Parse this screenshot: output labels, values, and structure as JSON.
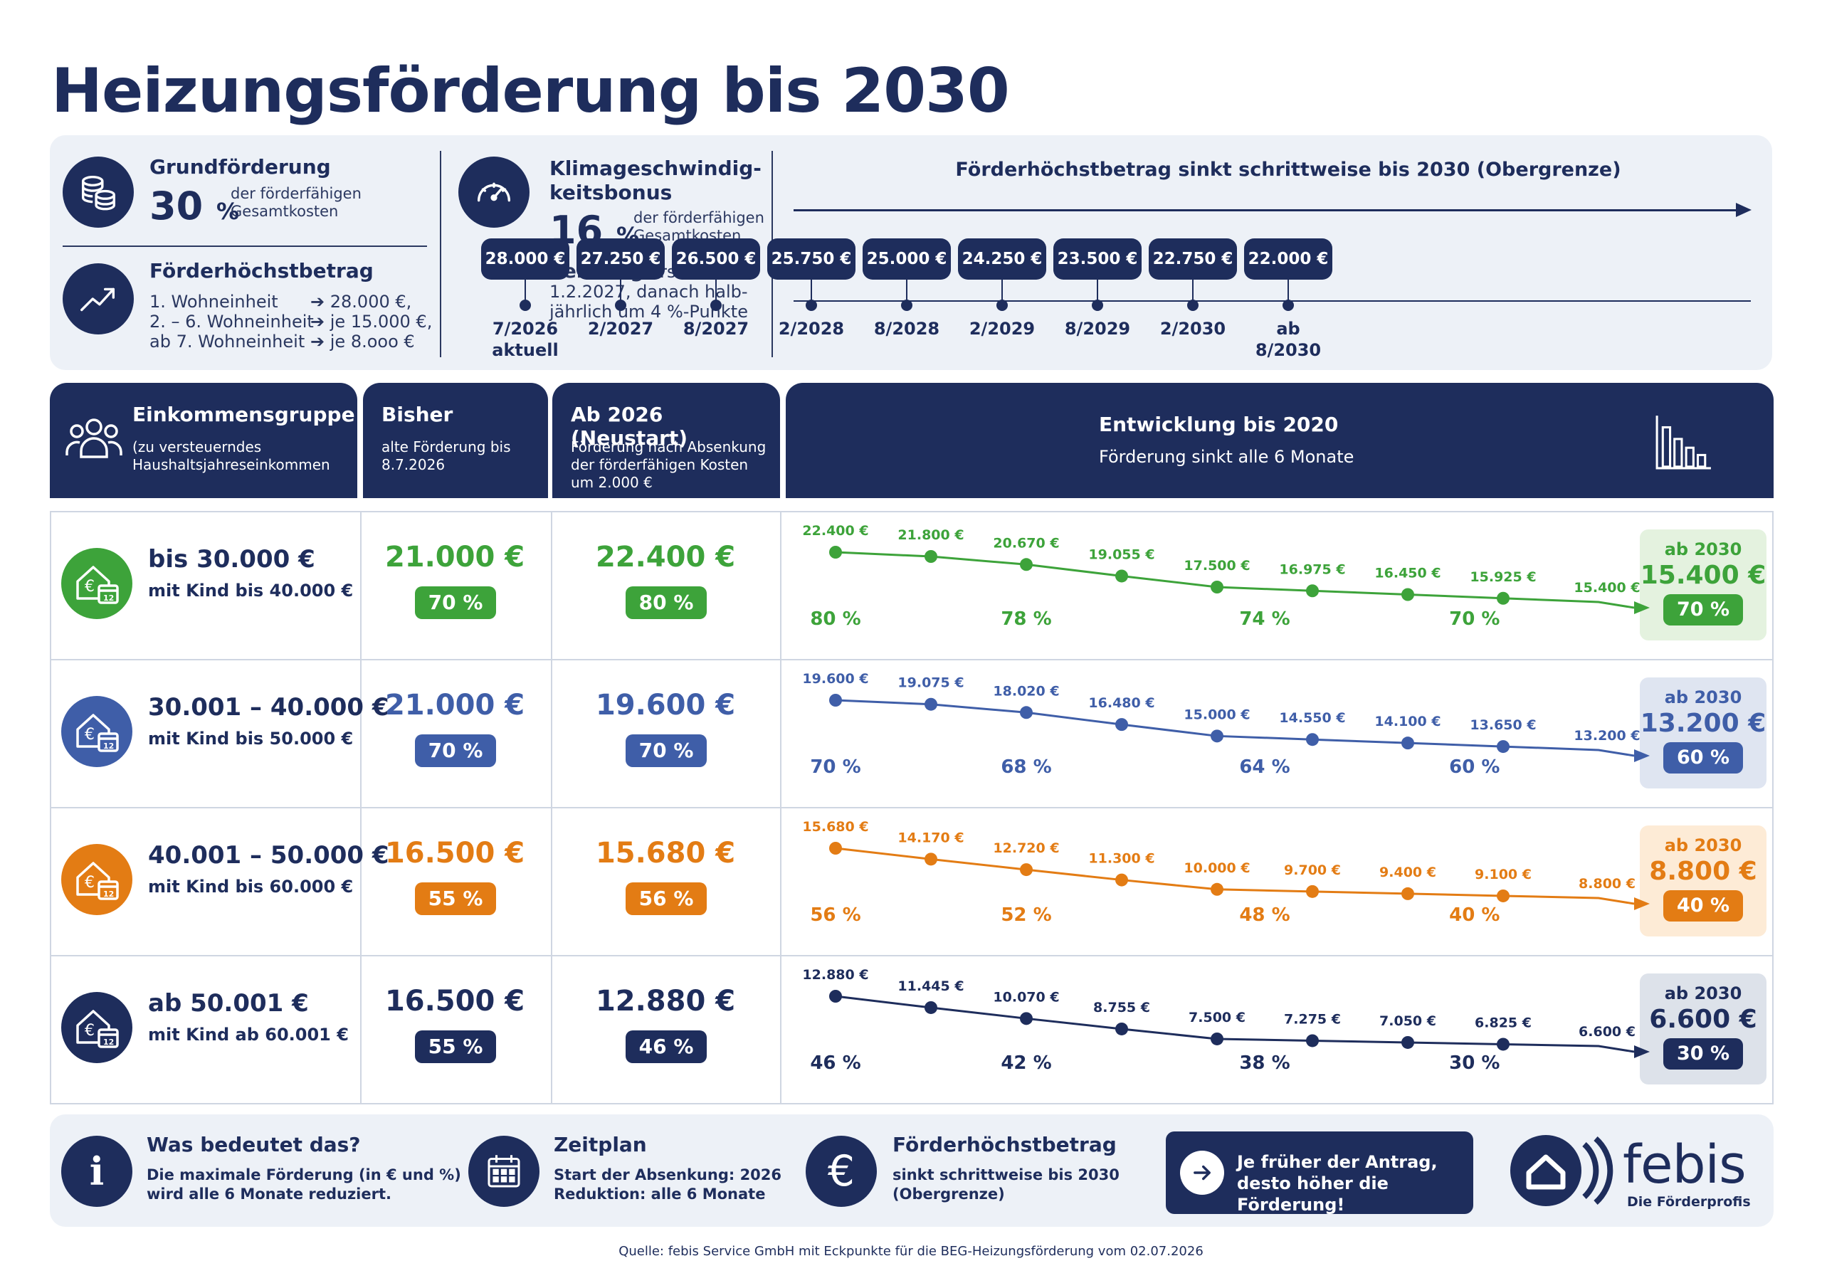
{
  "title": "Heizungsförderung bis 2030",
  "info": {
    "grund_title": "Grundförderung",
    "grund_pct": "30",
    "grund_unit": "%",
    "grund_desc1": "der förderfähigen",
    "grund_desc2": "Gesamtkosten",
    "hoechst_title": "Förderhöchstbetrag",
    "hoechst_lines": [
      "1. Wohneinheit",
      "2. – 6. Wohneinheit",
      "ab 7. Wohneinheit"
    ],
    "hoechst_values": [
      "28.000 €,",
      "je 15.000 €,",
      "je 8.ooo €"
    ],
    "klima_title1": "Klimageschwindig-",
    "klima_title2": "keitsbonus",
    "klima_pct": "16",
    "klima_unit": "%",
    "klima_desc1": "der förderfähigen",
    "klima_desc2": "Gesamtkosten",
    "senkung_bold": "Senkung",
    "senkung_rest1": "erstmals am",
    "senkung_rest2": "1.2.2027, danach halb-",
    "senkung_rest3": "jährlich um 4 %-Punkte"
  },
  "timeline": {
    "title": "Förderhöchstbetrag sinkt schrittweise bis 2030 (Obergrenze)",
    "items": [
      {
        "amount": "28.000 €",
        "date": "7/2026",
        "extra": "aktuell"
      },
      {
        "amount": "27.250 €",
        "date": "2/2027",
        "extra": ""
      },
      {
        "amount": "26.500 €",
        "date": "8/2027",
        "extra": ""
      },
      {
        "amount": "25.750 €",
        "date": "2/2028",
        "extra": ""
      },
      {
        "amount": "25.000 €",
        "date": "8/2028",
        "extra": ""
      },
      {
        "amount": "24.250 €",
        "date": "2/2029",
        "extra": ""
      },
      {
        "amount": "23.500 €",
        "date": "8/2029",
        "extra": ""
      },
      {
        "amount": "22.750 €",
        "date": "2/2030",
        "extra": ""
      },
      {
        "amount": "22.000 €",
        "date": "ab 8/2030",
        "extra": ""
      }
    ]
  },
  "header": {
    "col1_title": "Einkommensgruppe",
    "col1_sub1": "(zu versteuerndes",
    "col1_sub2": "Haushaltsjahreseinkommen",
    "col2_title": "Bisher",
    "col2_sub1": "alte Förderung bis",
    "col2_sub2": "8.7.2026",
    "col3_title": "Ab 2026 (Neustart)",
    "col3_sub1": "Förderung nach Absenkung",
    "col3_sub2": "der förderfähigen Kosten",
    "col3_sub3": "um 2.000 €",
    "col4_title": "Entwicklung bis 2020",
    "col4_sub": "Förderung sinkt alle 6 Monate"
  },
  "colors": {
    "navy": "#1e2d5c",
    "green": "#3da33a",
    "blue": "#3f5ea8",
    "orange": "#e37c14",
    "dark": "#1e2d5c"
  },
  "rows": [
    {
      "income": "bis 30.000 €",
      "income_sub": "mit Kind bis 40.000 €",
      "bisher": "21.000 €",
      "bisher_pct": "70 %",
      "neu": "22.400 €",
      "neu_pct": "80 %",
      "end_label": "ab 2030",
      "end_value": "15.400 €",
      "end_pct": "70 %"
    },
    {
      "income": "30.001 – 40.000 €",
      "income_sub": "mit Kind bis 50.000 €",
      "bisher": "21.000 €",
      "bisher_pct": "70 %",
      "neu": "19.600 €",
      "neu_pct": "70 %",
      "end_label": "ab 2030",
      "end_value": "13.200 €",
      "end_pct": "60 %"
    },
    {
      "income": "40.001 – 50.000 €",
      "income_sub": "mit Kind bis 60.000 €",
      "bisher": "16.500 €",
      "bisher_pct": "55 %",
      "neu": "15.680 €",
      "neu_pct": "56 %",
      "end_label": "ab 2030",
      "end_value": "8.800 €",
      "end_pct": "40 %"
    },
    {
      "income": "ab 50.001 €",
      "income_sub": "mit Kind ab 60.001 €",
      "bisher": "16.500 €",
      "bisher_pct": "55 %",
      "neu": "12.880 €",
      "neu_pct": "46 %",
      "end_label": "ab 2030",
      "end_value": "6.600 €",
      "end_pct": "30 %"
    }
  ],
  "chart_data": {
    "type": "line",
    "x": [
      "7/2026",
      "2/2027",
      "8/2027",
      "2/2028",
      "8/2028",
      "2/2029",
      "8/2029",
      "2/2030",
      "ab 8/2030"
    ],
    "series": [
      {
        "values": [
          22400,
          21800,
          20670,
          19055,
          17500,
          16975,
          16450,
          15925,
          15400
        ],
        "labels": [
          "22.400 €",
          "21.800 €",
          "20.670 €",
          "19.055 €",
          "17.500 €",
          "16.975 €",
          "16.450 €",
          "15.925 €",
          "15.400 €"
        ],
        "percents": [
          {
            "i": 0,
            "t": "80 %"
          },
          {
            "i": 2,
            "t": "78 %"
          },
          {
            "i": 4.5,
            "t": "74 %"
          },
          {
            "i": 6.7,
            "t": "70 %"
          }
        ]
      },
      {
        "values": [
          19600,
          19075,
          18020,
          16480,
          15000,
          14550,
          14100,
          13650,
          13200
        ],
        "labels": [
          "19.600 €",
          "19.075 €",
          "18.020 €",
          "16.480 €",
          "15.000 €",
          "14.550 €",
          "14.100 €",
          "13.650 €",
          "13.200 €"
        ],
        "percents": [
          {
            "i": 0,
            "t": "70 %"
          },
          {
            "i": 2,
            "t": "68 %"
          },
          {
            "i": 4.5,
            "t": "64 %"
          },
          {
            "i": 6.7,
            "t": "60 %"
          }
        ]
      },
      {
        "values": [
          15680,
          14170,
          12720,
          11300,
          10000,
          9700,
          9400,
          9100,
          8800
        ],
        "labels": [
          "15.680 €",
          "14.170 €",
          "12.720 €",
          "11.300 €",
          "10.000 €",
          "9.700 €",
          "9.400 €",
          "9.100 €",
          "8.800 €"
        ],
        "percents": [
          {
            "i": 0,
            "t": "56 %"
          },
          {
            "i": 2,
            "t": "52 %"
          },
          {
            "i": 4.5,
            "t": "48 %"
          },
          {
            "i": 6.7,
            "t": "40 %"
          }
        ]
      },
      {
        "values": [
          12880,
          11445,
          10070,
          8755,
          7500,
          7275,
          7050,
          6825,
          6600
        ],
        "labels": [
          "12.880 €",
          "11.445 €",
          "10.070 €",
          "8.755 €",
          "7.500 €",
          "7.275 €",
          "7.050 €",
          "6.825 €",
          "6.600 €"
        ],
        "percents": [
          {
            "i": 0,
            "t": "46 %"
          },
          {
            "i": 2,
            "t": "42 %"
          },
          {
            "i": 4.5,
            "t": "38 %"
          },
          {
            "i": 6.7,
            "t": "30 %"
          }
        ]
      }
    ]
  },
  "footer": {
    "info_title": "Was bedeutet das?",
    "info_line1": "Die maximale Förderung (in € und %)",
    "info_line2": "wird alle 6 Monate reduziert.",
    "plan_title": "Zeitplan",
    "plan_line1": "Start der Absenkung: 2026",
    "plan_line2": "Reduktion: alle 6 Monate",
    "max_title": "Förderhöchstbetrag",
    "max_line1": "sinkt schrittweise bis 2030",
    "max_line2": "(Obergrenze)",
    "cta_line1": "Je früher der Antrag,",
    "cta_line2": "desto höher die Förderung!",
    "logo": "febis",
    "logo_sub": "Die Förderprofis"
  },
  "source": "Quelle: febis Service GmbH mit Eckpunkte für die BEG-Heizungsförderung vom 02.07.2026"
}
